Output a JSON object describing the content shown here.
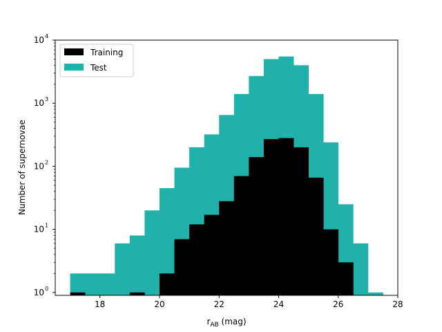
{
  "chart_data": {
    "type": "bar",
    "subtype": "stacked-step-histogram",
    "title": "",
    "xlabel": "r",
    "xlabel_sub": "AB",
    "xlabel_unit": " (mag)",
    "ylabel": "Number of supernovae",
    "xlim": [
      16.5,
      28
    ],
    "ylim": [
      0.9,
      10000
    ],
    "yscale": "log",
    "grid": false,
    "legend_position": "top-left",
    "x_ticks": [
      "18",
      "20",
      "22",
      "24",
      "26",
      "28"
    ],
    "y_ticks": [
      {
        "base": "10",
        "exp": "0"
      },
      {
        "base": "10",
        "exp": "1"
      },
      {
        "base": "10",
        "exp": "2"
      },
      {
        "base": "10",
        "exp": "3"
      },
      {
        "base": "10",
        "exp": "4"
      }
    ],
    "bin_edges": [
      17.0,
      17.5,
      18.0,
      18.5,
      19.0,
      19.5,
      20.0,
      20.5,
      21.0,
      21.5,
      22.0,
      22.5,
      23.0,
      23.5,
      24.0,
      24.5,
      25.0,
      25.5,
      26.0,
      26.5,
      27.0,
      27.5
    ],
    "series": [
      {
        "name": "Training",
        "color": "#000000",
        "values": [
          1,
          0,
          0,
          0,
          1,
          0,
          2,
          7,
          12,
          17,
          28,
          70,
          140,
          270,
          280,
          200,
          66,
          10,
          3,
          0,
          0
        ]
      },
      {
        "name": "Test",
        "color": "#20b2aa",
        "values": [
          2,
          2,
          2,
          6,
          8,
          20,
          45,
          95,
          200,
          320,
          650,
          1400,
          2700,
          5000,
          5500,
          4000,
          1400,
          240,
          25,
          6,
          1
        ]
      }
    ]
  }
}
